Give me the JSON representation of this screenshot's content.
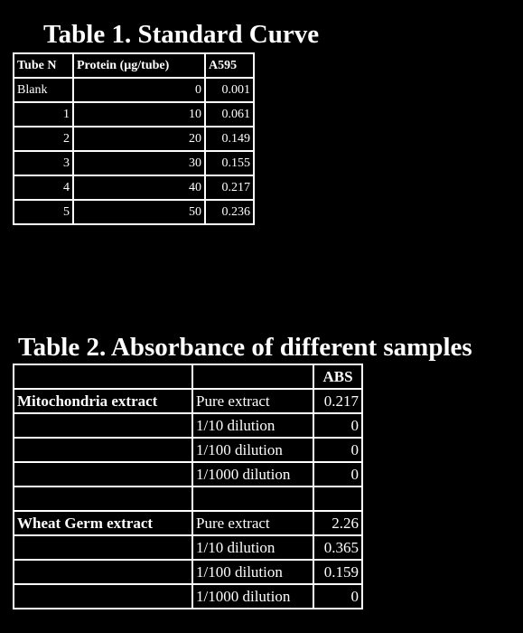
{
  "table1": {
    "title": "Table 1. Standard Curve",
    "headers": [
      "Tube N",
      "Protein (µg/tube)",
      "A595"
    ],
    "rows": [
      [
        "Blank",
        "0",
        "0.001"
      ],
      [
        "1",
        "10",
        "0.061"
      ],
      [
        "2",
        "20",
        "0.149"
      ],
      [
        "3",
        "30",
        "0.155"
      ],
      [
        "4",
        "40",
        "0.217"
      ],
      [
        "5",
        "50",
        "0.236"
      ]
    ]
  },
  "table2": {
    "title": "Table 2. Absorbance of different samples",
    "header_abs": "ABS",
    "groups": [
      {
        "name": "Mitochondria extract",
        "rows": [
          [
            "Pure extract",
            "0.217"
          ],
          [
            "1/10 dilution",
            "0"
          ],
          [
            "1/100 dilution",
            "0"
          ],
          [
            "1/1000 dilution",
            "0"
          ]
        ]
      },
      {
        "name": "Wheat Germ extract",
        "rows": [
          [
            "Pure extract",
            "2.26"
          ],
          [
            "1/10 dilution",
            "0.365"
          ],
          [
            "1/100 dilution",
            "0.159"
          ],
          [
            "1/1000 dilution",
            "0"
          ]
        ]
      }
    ]
  }
}
